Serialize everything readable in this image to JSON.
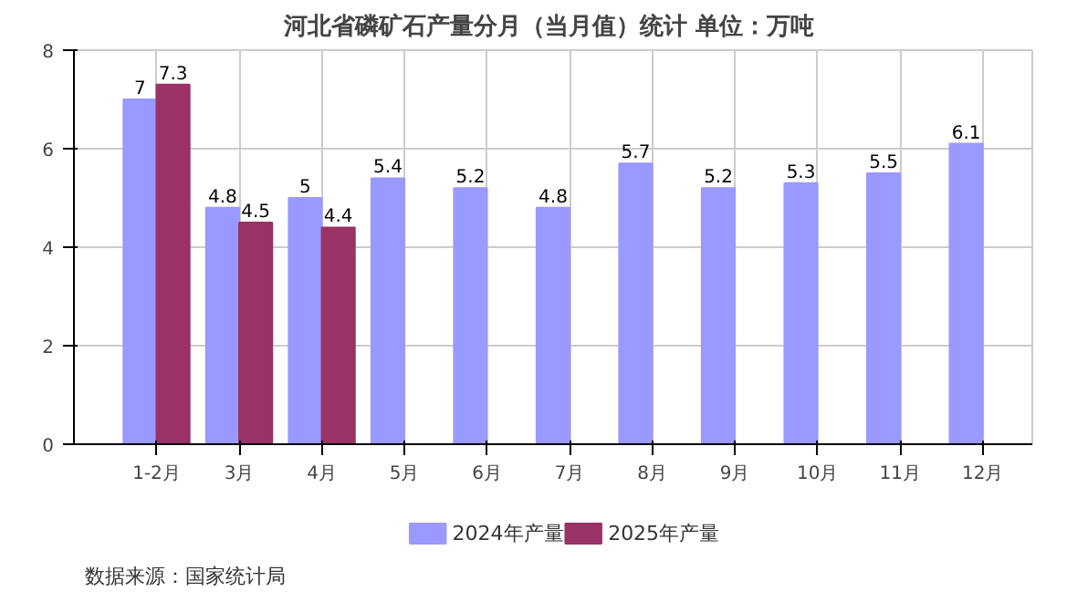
{
  "chart_data": {
    "type": "bar",
    "title": "河北省磷矿石产量分月（当月值）统计  单位：万吨",
    "categories": [
      "1-2月",
      "3月",
      "4月",
      "5月",
      "6月",
      "7月",
      "8月",
      "9月",
      "10月",
      "11月",
      "12月"
    ],
    "series": [
      {
        "name": "2024年产量",
        "color": "#9999ff",
        "values": [
          7,
          4.8,
          5,
          5.4,
          5.2,
          4.8,
          5.7,
          5.2,
          5.3,
          5.5,
          6.1
        ]
      },
      {
        "name": "2025年产量",
        "color": "#993366",
        "values": [
          7.3,
          4.5,
          4.4,
          null,
          null,
          null,
          null,
          null,
          null,
          null,
          null
        ]
      }
    ],
    "ylim": [
      0,
      8
    ],
    "yticks": [
      0,
      2,
      4,
      6,
      8
    ],
    "grid": true,
    "legend": "bottom",
    "data_labels": true,
    "annotations": [
      "数据来源：国家统计局"
    ]
  }
}
